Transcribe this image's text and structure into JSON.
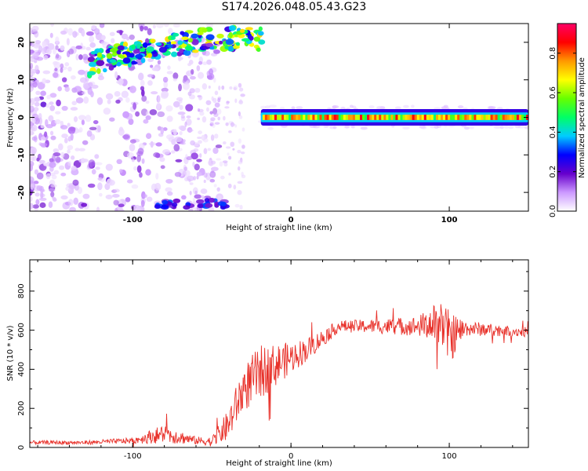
{
  "page": {
    "title": "S174.2026.048.05.43.G23"
  },
  "colors": {
    "snr_line": "#e8312a",
    "axis": "#000000"
  },
  "chart_data": [
    {
      "type": "heatmap",
      "xlabel": "Height of straight line (km)",
      "ylabel": "Frequency (Hz)",
      "xlim": [
        -165,
        150
      ],
      "ylim": [
        -25,
        25
      ],
      "xticks": [
        -100,
        0,
        100
      ],
      "yticks": [
        -20,
        -10,
        0,
        10,
        20
      ],
      "colorbar": {
        "label": "Normalized spectral amplitude",
        "range": [
          0,
          0.95
        ],
        "ticks": [
          0.0,
          0.2,
          0.4,
          0.6,
          0.8
        ],
        "colormap": [
          "#ffffff",
          "#cc99ff",
          "#6600cc",
          "#0000ff",
          "#00ccff",
          "#00ff66",
          "#66ff00",
          "#ffff00",
          "#ff9900",
          "#ff0000",
          "#ff0066"
        ]
      },
      "bands": [
        {
          "name": "carrier",
          "x_start": -19,
          "x_end": 150,
          "freq": 0,
          "amplitude": 0.9
        },
        {
          "name": "upper arc",
          "x_start": -128,
          "x_end": -18,
          "freq_start": 14,
          "freq_end": 21,
          "amplitude": 0.6
        }
      ],
      "grid": false
    },
    {
      "type": "line",
      "xlabel": "Height of straight line (km)",
      "ylabel": "SNR (10 * v/v)",
      "xlim": [
        -165,
        150
      ],
      "ylim": [
        0,
        960
      ],
      "xticks": [
        -100,
        0,
        100
      ],
      "yticks": [
        0,
        200,
        400,
        600,
        800
      ],
      "grid": false,
      "series": [
        {
          "profile_x": [
            -165,
            -130,
            -100,
            -80,
            -60,
            -50,
            -40,
            -30,
            -20,
            -10,
            0,
            10,
            20,
            30,
            50,
            80,
            95,
            100,
            110,
            130,
            150
          ],
          "profile_y": [
            25,
            25,
            35,
            70,
            35,
            30,
            110,
            300,
            380,
            420,
            460,
            500,
            560,
            620,
            620,
            620,
            640,
            560,
            610,
            600,
            590
          ],
          "noise_amp": [
            10,
            10,
            15,
            50,
            20,
            25,
            80,
            120,
            140,
            110,
            80,
            60,
            45,
            30,
            35,
            50,
            120,
            140,
            40,
            30,
            25
          ]
        }
      ]
    }
  ]
}
